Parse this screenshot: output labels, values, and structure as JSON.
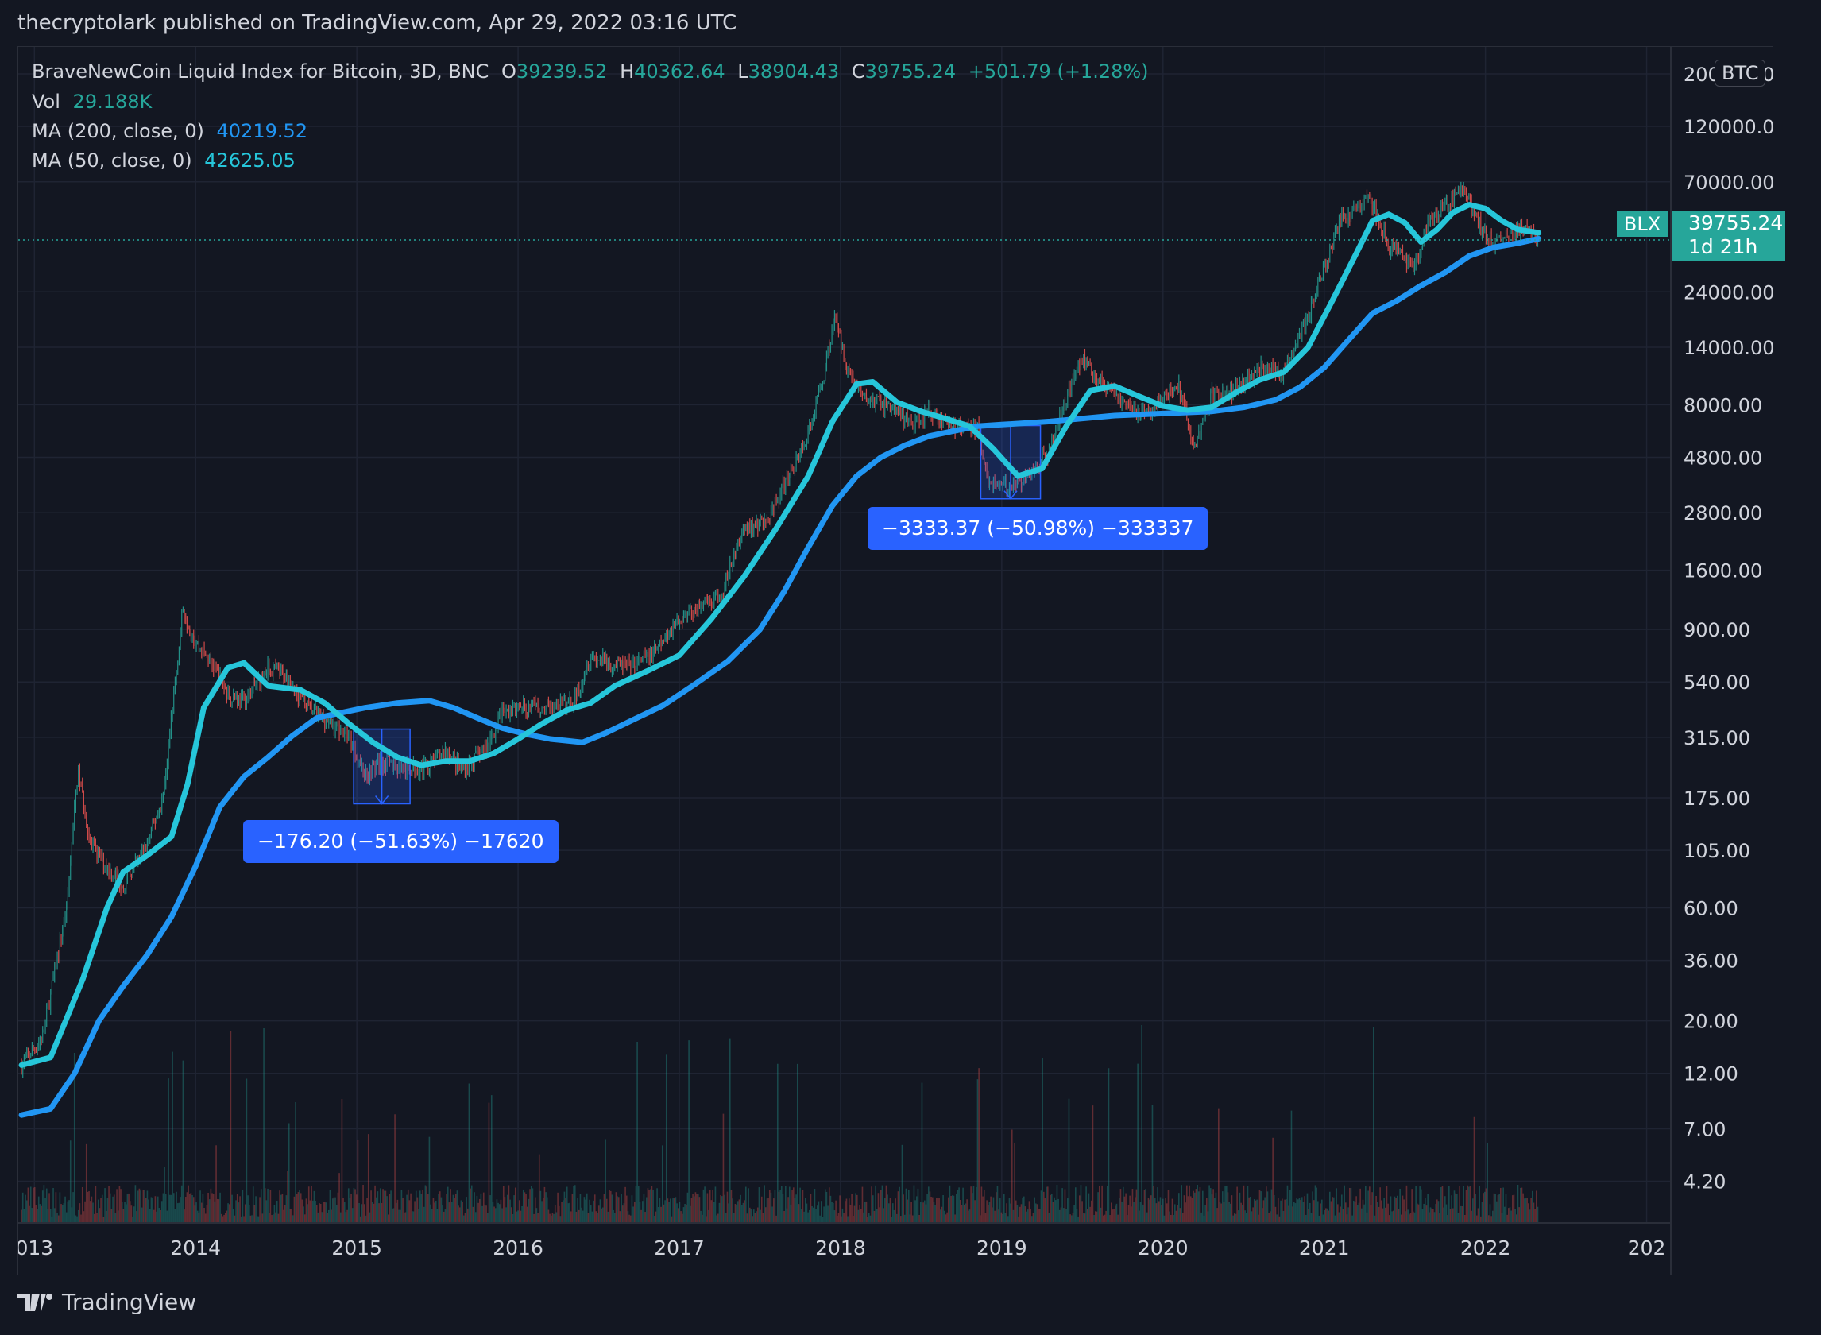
{
  "publisher": "thecryptolark published on TradingView.com, Apr 29, 2022 03:16 UTC",
  "legend": {
    "symbol": "BraveNewCoin Liquid Index for Bitcoin, 3D, BNC",
    "open_label": "O",
    "open": "39239.52",
    "high_label": "H",
    "high": "40362.64",
    "low_label": "L",
    "low": "38904.43",
    "close_label": "C",
    "close": "39755.24",
    "change": "+501.79 (+1.28%)",
    "vol_label": "Vol",
    "vol": "29.188K",
    "ma200_label": "MA (200, close, 0)",
    "ma200": "40219.52",
    "ma50_label": "MA (50, close, 0)",
    "ma50": "42625.05"
  },
  "currency": "BTC",
  "symbol_tag": "BLX",
  "last_price": "39755.24",
  "countdown": "1d 21h",
  "footer": "TradingView",
  "colors": {
    "background": "#131722",
    "grid": "#1f2433",
    "ma50": "#26c6da",
    "ma200": "#2196f3",
    "up": "#26a69a",
    "down": "#ef5350",
    "measure": "#2962ff"
  },
  "chart_data": {
    "type": "line",
    "scale": "log",
    "y_ticks": [
      "200000.00",
      "120000.00",
      "70000.00",
      "24000.00",
      "14000.00",
      "8000.00",
      "4800.00",
      "2800.00",
      "1600.00",
      "900.00",
      "540.00",
      "315.00",
      "175.00",
      "105.00",
      "60.00",
      "36.00",
      "20.00",
      "12.00",
      "7.00",
      "4.20"
    ],
    "x_ticks": [
      "013",
      "2014",
      "2015",
      "2016",
      "2017",
      "2018",
      "2019",
      "2020",
      "2021",
      "2022",
      "202"
    ],
    "ylim": [
      2.8,
      260000
    ],
    "xlim": [
      2012.9,
      2023.15
    ],
    "last_close": 39755.24,
    "price": [
      [
        2012.92,
        13
      ],
      [
        2013.05,
        17
      ],
      [
        2013.2,
        60
      ],
      [
        2013.27,
        230
      ],
      [
        2013.35,
        110
      ],
      [
        2013.45,
        90
      ],
      [
        2013.55,
        75
      ],
      [
        2013.7,
        110
      ],
      [
        2013.8,
        180
      ],
      [
        2013.92,
        1100
      ],
      [
        2014.0,
        800
      ],
      [
        2014.1,
        650
      ],
      [
        2014.2,
        480
      ],
      [
        2014.3,
        450
      ],
      [
        2014.45,
        620
      ],
      [
        2014.55,
        580
      ],
      [
        2014.7,
        420
      ],
      [
        2014.85,
        360
      ],
      [
        2014.95,
        320
      ],
      [
        2015.05,
        220
      ],
      [
        2015.15,
        250
      ],
      [
        2015.3,
        230
      ],
      [
        2015.45,
        240
      ],
      [
        2015.55,
        280
      ],
      [
        2015.65,
        230
      ],
      [
        2015.8,
        280
      ],
      [
        2015.9,
        400
      ],
      [
        2016.0,
        420
      ],
      [
        2016.2,
        420
      ],
      [
        2016.35,
        450
      ],
      [
        2016.45,
        700
      ],
      [
        2016.55,
        650
      ],
      [
        2016.7,
        620
      ],
      [
        2016.85,
        720
      ],
      [
        2016.97,
        950
      ],
      [
        2017.1,
        1100
      ],
      [
        2017.25,
        1200
      ],
      [
        2017.4,
        2400
      ],
      [
        2017.55,
        2600
      ],
      [
        2017.7,
        4300
      ],
      [
        2017.8,
        6000
      ],
      [
        2017.9,
        11000
      ],
      [
        2017.96,
        19000
      ],
      [
        2018.05,
        11000
      ],
      [
        2018.15,
        8500
      ],
      [
        2018.3,
        8000
      ],
      [
        2018.45,
        6500
      ],
      [
        2018.55,
        7500
      ],
      [
        2018.7,
        6500
      ],
      [
        2018.85,
        6300
      ],
      [
        2018.92,
        3800
      ],
      [
        2019.0,
        3600
      ],
      [
        2019.15,
        3900
      ],
      [
        2019.3,
        5200
      ],
      [
        2019.45,
        11000
      ],
      [
        2019.5,
        12500
      ],
      [
        2019.6,
        10200
      ],
      [
        2019.75,
        8200
      ],
      [
        2019.9,
        7200
      ],
      [
        2020.0,
        8500
      ],
      [
        2020.1,
        9500
      ],
      [
        2020.2,
        5200
      ],
      [
        2020.3,
        8800
      ],
      [
        2020.45,
        9300
      ],
      [
        2020.6,
        11500
      ],
      [
        2020.75,
        11000
      ],
      [
        2020.9,
        19000
      ],
      [
        2021.0,
        30000
      ],
      [
        2021.1,
        48000
      ],
      [
        2021.28,
        60000
      ],
      [
        2021.4,
        38000
      ],
      [
        2021.55,
        30000
      ],
      [
        2021.65,
        47000
      ],
      [
        2021.8,
        60000
      ],
      [
        2021.87,
        66000
      ],
      [
        2021.95,
        48000
      ],
      [
        2022.05,
        38000
      ],
      [
        2022.15,
        42000
      ],
      [
        2022.25,
        45000
      ],
      [
        2022.33,
        39755
      ]
    ],
    "ma50": [
      [
        2012.92,
        13
      ],
      [
        2013.1,
        14
      ],
      [
        2013.3,
        30
      ],
      [
        2013.45,
        60
      ],
      [
        2013.55,
        85
      ],
      [
        2013.7,
        100
      ],
      [
        2013.85,
        120
      ],
      [
        2013.95,
        200
      ],
      [
        2014.05,
        420
      ],
      [
        2014.2,
        620
      ],
      [
        2014.3,
        650
      ],
      [
        2014.45,
        520
      ],
      [
        2014.65,
        500
      ],
      [
        2014.8,
        440
      ],
      [
        2014.95,
        360
      ],
      [
        2015.1,
        300
      ],
      [
        2015.25,
        260
      ],
      [
        2015.4,
        240
      ],
      [
        2015.55,
        250
      ],
      [
        2015.7,
        250
      ],
      [
        2015.85,
        270
      ],
      [
        2016.0,
        310
      ],
      [
        2016.15,
        360
      ],
      [
        2016.3,
        410
      ],
      [
        2016.45,
        440
      ],
      [
        2016.6,
        520
      ],
      [
        2016.8,
        600
      ],
      [
        2017.0,
        700
      ],
      [
        2017.2,
        1000
      ],
      [
        2017.4,
        1500
      ],
      [
        2017.6,
        2400
      ],
      [
        2017.8,
        4000
      ],
      [
        2017.95,
        6800
      ],
      [
        2018.1,
        9800
      ],
      [
        2018.2,
        10000
      ],
      [
        2018.35,
        8200
      ],
      [
        2018.5,
        7500
      ],
      [
        2018.65,
        7000
      ],
      [
        2018.8,
        6500
      ],
      [
        2018.95,
        5200
      ],
      [
        2019.1,
        4000
      ],
      [
        2019.25,
        4300
      ],
      [
        2019.4,
        6500
      ],
      [
        2019.55,
        9200
      ],
      [
        2019.7,
        9600
      ],
      [
        2019.85,
        8700
      ],
      [
        2020.0,
        7900
      ],
      [
        2020.15,
        7600
      ],
      [
        2020.3,
        7800
      ],
      [
        2020.45,
        9000
      ],
      [
        2020.6,
        10200
      ],
      [
        2020.75,
        11000
      ],
      [
        2020.9,
        14000
      ],
      [
        2021.05,
        22000
      ],
      [
        2021.2,
        35000
      ],
      [
        2021.3,
        48000
      ],
      [
        2021.4,
        51000
      ],
      [
        2021.5,
        47000
      ],
      [
        2021.6,
        39000
      ],
      [
        2021.7,
        44000
      ],
      [
        2021.8,
        52000
      ],
      [
        2021.9,
        56000
      ],
      [
        2022.0,
        54000
      ],
      [
        2022.1,
        48000
      ],
      [
        2022.2,
        44000
      ],
      [
        2022.33,
        42625
      ]
    ],
    "ma200": [
      [
        2012.92,
        8
      ],
      [
        2013.1,
        8.5
      ],
      [
        2013.25,
        12
      ],
      [
        2013.4,
        20
      ],
      [
        2013.55,
        28
      ],
      [
        2013.7,
        38
      ],
      [
        2013.85,
        55
      ],
      [
        2014.0,
        90
      ],
      [
        2014.15,
        160
      ],
      [
        2014.3,
        215
      ],
      [
        2014.45,
        260
      ],
      [
        2014.6,
        320
      ],
      [
        2014.75,
        380
      ],
      [
        2014.9,
        400
      ],
      [
        2015.05,
        420
      ],
      [
        2015.25,
        440
      ],
      [
        2015.45,
        450
      ],
      [
        2015.6,
        420
      ],
      [
        2015.75,
        380
      ],
      [
        2015.9,
        345
      ],
      [
        2016.05,
        325
      ],
      [
        2016.2,
        310
      ],
      [
        2016.4,
        300
      ],
      [
        2016.55,
        330
      ],
      [
        2016.7,
        370
      ],
      [
        2016.9,
        430
      ],
      [
        2017.1,
        530
      ],
      [
        2017.3,
        660
      ],
      [
        2017.5,
        900
      ],
      [
        2017.65,
        1300
      ],
      [
        2017.8,
        2000
      ],
      [
        2017.95,
        3000
      ],
      [
        2018.1,
        4000
      ],
      [
        2018.25,
        4800
      ],
      [
        2018.4,
        5400
      ],
      [
        2018.55,
        5900
      ],
      [
        2018.7,
        6200
      ],
      [
        2018.85,
        6500
      ],
      [
        2019.0,
        6600
      ],
      [
        2019.15,
        6700
      ],
      [
        2019.3,
        6800
      ],
      [
        2019.5,
        7000
      ],
      [
        2019.7,
        7200
      ],
      [
        2019.9,
        7300
      ],
      [
        2020.1,
        7400
      ],
      [
        2020.3,
        7500
      ],
      [
        2020.5,
        7800
      ],
      [
        2020.7,
        8400
      ],
      [
        2020.85,
        9500
      ],
      [
        2021.0,
        11500
      ],
      [
        2021.15,
        15000
      ],
      [
        2021.3,
        19500
      ],
      [
        2021.45,
        22000
      ],
      [
        2021.6,
        25500
      ],
      [
        2021.75,
        29000
      ],
      [
        2021.9,
        34000
      ],
      [
        2022.05,
        37000
      ],
      [
        2022.2,
        38500
      ],
      [
        2022.33,
        40219
      ]
    ],
    "measure_1": {
      "label": "−176.20 (−51.63%) −17620",
      "x0": 2014.98,
      "x1": 2015.33,
      "y0": 341.3,
      "y1": 165.1
    },
    "measure_2": {
      "label": "−3333.37 (−50.98%) −333337",
      "x0": 2018.87,
      "x1": 2019.24,
      "y0": 6538.5,
      "y1": 3205.1
    }
  }
}
